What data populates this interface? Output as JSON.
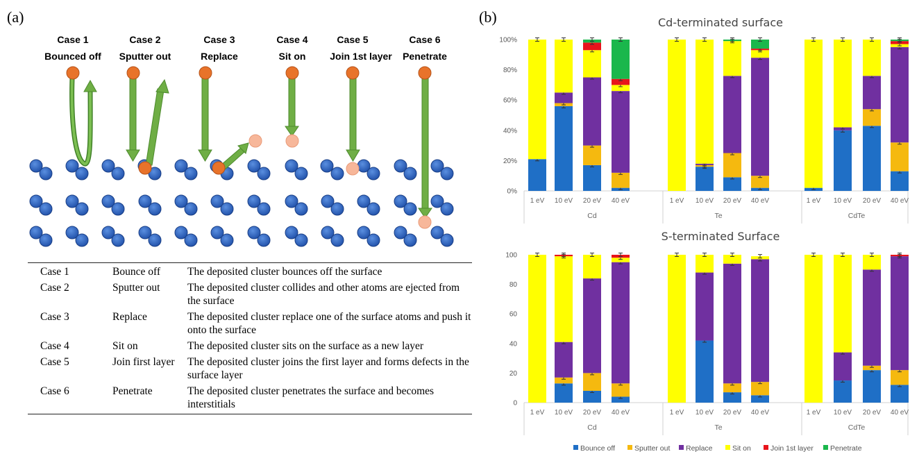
{
  "panel_a_label": "(a)",
  "panel_b_label": "(b)",
  "cases": [
    {
      "title": "Case 1",
      "subtitle": "Bounced off"
    },
    {
      "title": "Case 2",
      "subtitle": "Sputter out"
    },
    {
      "title": "Case 3",
      "subtitle": "Replace"
    },
    {
      "title": "Case 4",
      "subtitle": "Sit on"
    },
    {
      "title": "Case 5",
      "subtitle": "Join 1st layer"
    },
    {
      "title": "Case 6",
      "subtitle": "Penetrate"
    }
  ],
  "table": [
    {
      "case": "Case 1",
      "name": "Bounce off",
      "desc": "The deposited cluster bounces off the surface"
    },
    {
      "case": "Case 2",
      "name": "Sputter out",
      "desc": "The deposited cluster collides and other atoms are ejected from the surface"
    },
    {
      "case": "Case 3",
      "name": "Replace",
      "desc": "The deposited cluster replace one of the surface atoms and push it onto the surface"
    },
    {
      "case": "Case 4",
      "name": "Sit on",
      "desc": "The deposited cluster sits on the surface as a new layer"
    },
    {
      "case": "Case 5",
      "name": "Join first layer",
      "desc": "The deposited cluster joins the first layer and forms defects in the surface layer"
    },
    {
      "case": "Case 6",
      "name": "Penetrate",
      "desc": "The deposited cluster penetrates the surface and becomes interstitials"
    }
  ],
  "colors": {
    "atom_blue": "#2e64c2",
    "atom_orange": "#e8732a",
    "atom_light": "#f7b79a",
    "arrow_green": "#6fae45",
    "arrow_dark_green": "#4c8a2c"
  },
  "legend": [
    {
      "name": "Bounce off",
      "color": "#1f6fc6"
    },
    {
      "name": "Sputter out",
      "color": "#f5b90f"
    },
    {
      "name": "Replace",
      "color": "#7030a0"
    },
    {
      "name": "Sit on",
      "color": "#ffff00"
    },
    {
      "name": "Join 1st layer",
      "color": "#e8141b"
    },
    {
      "name": "Penetrate",
      "color": "#1ab74c"
    }
  ],
  "chart_data": [
    {
      "type": "bar",
      "stacked": true,
      "title": "Cd-terminated surface",
      "y_ticks": [
        "0%",
        "20%",
        "40%",
        "60%",
        "80%",
        "100%"
      ],
      "ylim": [
        0,
        100
      ],
      "grid": false,
      "legend_position": "bottom",
      "groups": [
        "Cd",
        "Te",
        "CdTe"
      ],
      "categories": [
        "1 eV",
        "10 eV",
        "20 eV",
        "40 eV"
      ],
      "series": [
        {
          "name": "Bounce off",
          "values": [
            [
              21,
              56,
              17,
              2
            ],
            [
              0,
              16,
              9,
              2
            ],
            [
              2,
              40,
              43,
              13
            ]
          ]
        },
        {
          "name": "Sputter out",
          "values": [
            [
              0,
              2,
              13,
              10
            ],
            [
              0,
              1,
              16,
              8
            ],
            [
              0,
              0,
              11,
              19
            ]
          ]
        },
        {
          "name": "Replace",
          "values": [
            [
              0,
              7,
              45,
              54
            ],
            [
              0,
              1,
              51,
              78
            ],
            [
              0,
              2,
              22,
              63
            ]
          ]
        },
        {
          "name": "Sit on",
          "values": [
            [
              79,
              35,
              18,
              4
            ],
            [
              100,
              82,
              23,
              5
            ],
            [
              98,
              58,
              24,
              2
            ]
          ]
        },
        {
          "name": "Join 1st layer",
          "values": [
            [
              0,
              0,
              5,
              4
            ],
            [
              0,
              0,
              0,
              1
            ],
            [
              0,
              0,
              0,
              2
            ]
          ]
        },
        {
          "name": "Penetrate",
          "values": [
            [
              0,
              0,
              2,
              26
            ],
            [
              0,
              0,
              1,
              6
            ],
            [
              0,
              0,
              0,
              1
            ]
          ]
        }
      ]
    },
    {
      "type": "bar",
      "stacked": true,
      "title": "S-terminated Surface",
      "y_ticks": [
        "0",
        "20",
        "40",
        "60",
        "80",
        "100"
      ],
      "ylim": [
        0,
        100
      ],
      "grid": false,
      "legend_position": "bottom",
      "groups": [
        "Cd",
        "Te",
        "CdTe"
      ],
      "categories": [
        "1 eV",
        "10 eV",
        "20 eV",
        "40 eV"
      ],
      "series": [
        {
          "name": "Bounce off",
          "values": [
            [
              0,
              13,
              8,
              4
            ],
            [
              0,
              42,
              7,
              5
            ],
            [
              0,
              15,
              22,
              12
            ]
          ]
        },
        {
          "name": "Sputter out",
          "values": [
            [
              0,
              4,
              12,
              9
            ],
            [
              0,
              0,
              6,
              9
            ],
            [
              0,
              0,
              3,
              10
            ]
          ]
        },
        {
          "name": "Replace",
          "values": [
            [
              0,
              24,
              64,
              82
            ],
            [
              0,
              46,
              81,
              83
            ],
            [
              0,
              19,
              65,
              77
            ]
          ]
        },
        {
          "name": "Sit on",
          "values": [
            [
              100,
              58,
              16,
              3
            ],
            [
              100,
              12,
              6,
              2
            ],
            [
              100,
              66,
              10,
              0
            ]
          ]
        },
        {
          "name": "Join 1st layer",
          "values": [
            [
              0,
              1,
              0,
              2
            ],
            [
              0,
              0,
              0,
              0
            ],
            [
              0,
              0,
              0,
              1
            ]
          ]
        },
        {
          "name": "Penetrate",
          "values": [
            [
              0,
              0,
              0,
              0
            ],
            [
              0,
              0,
              0,
              0
            ],
            [
              0,
              0,
              0,
              0
            ]
          ]
        }
      ]
    }
  ]
}
